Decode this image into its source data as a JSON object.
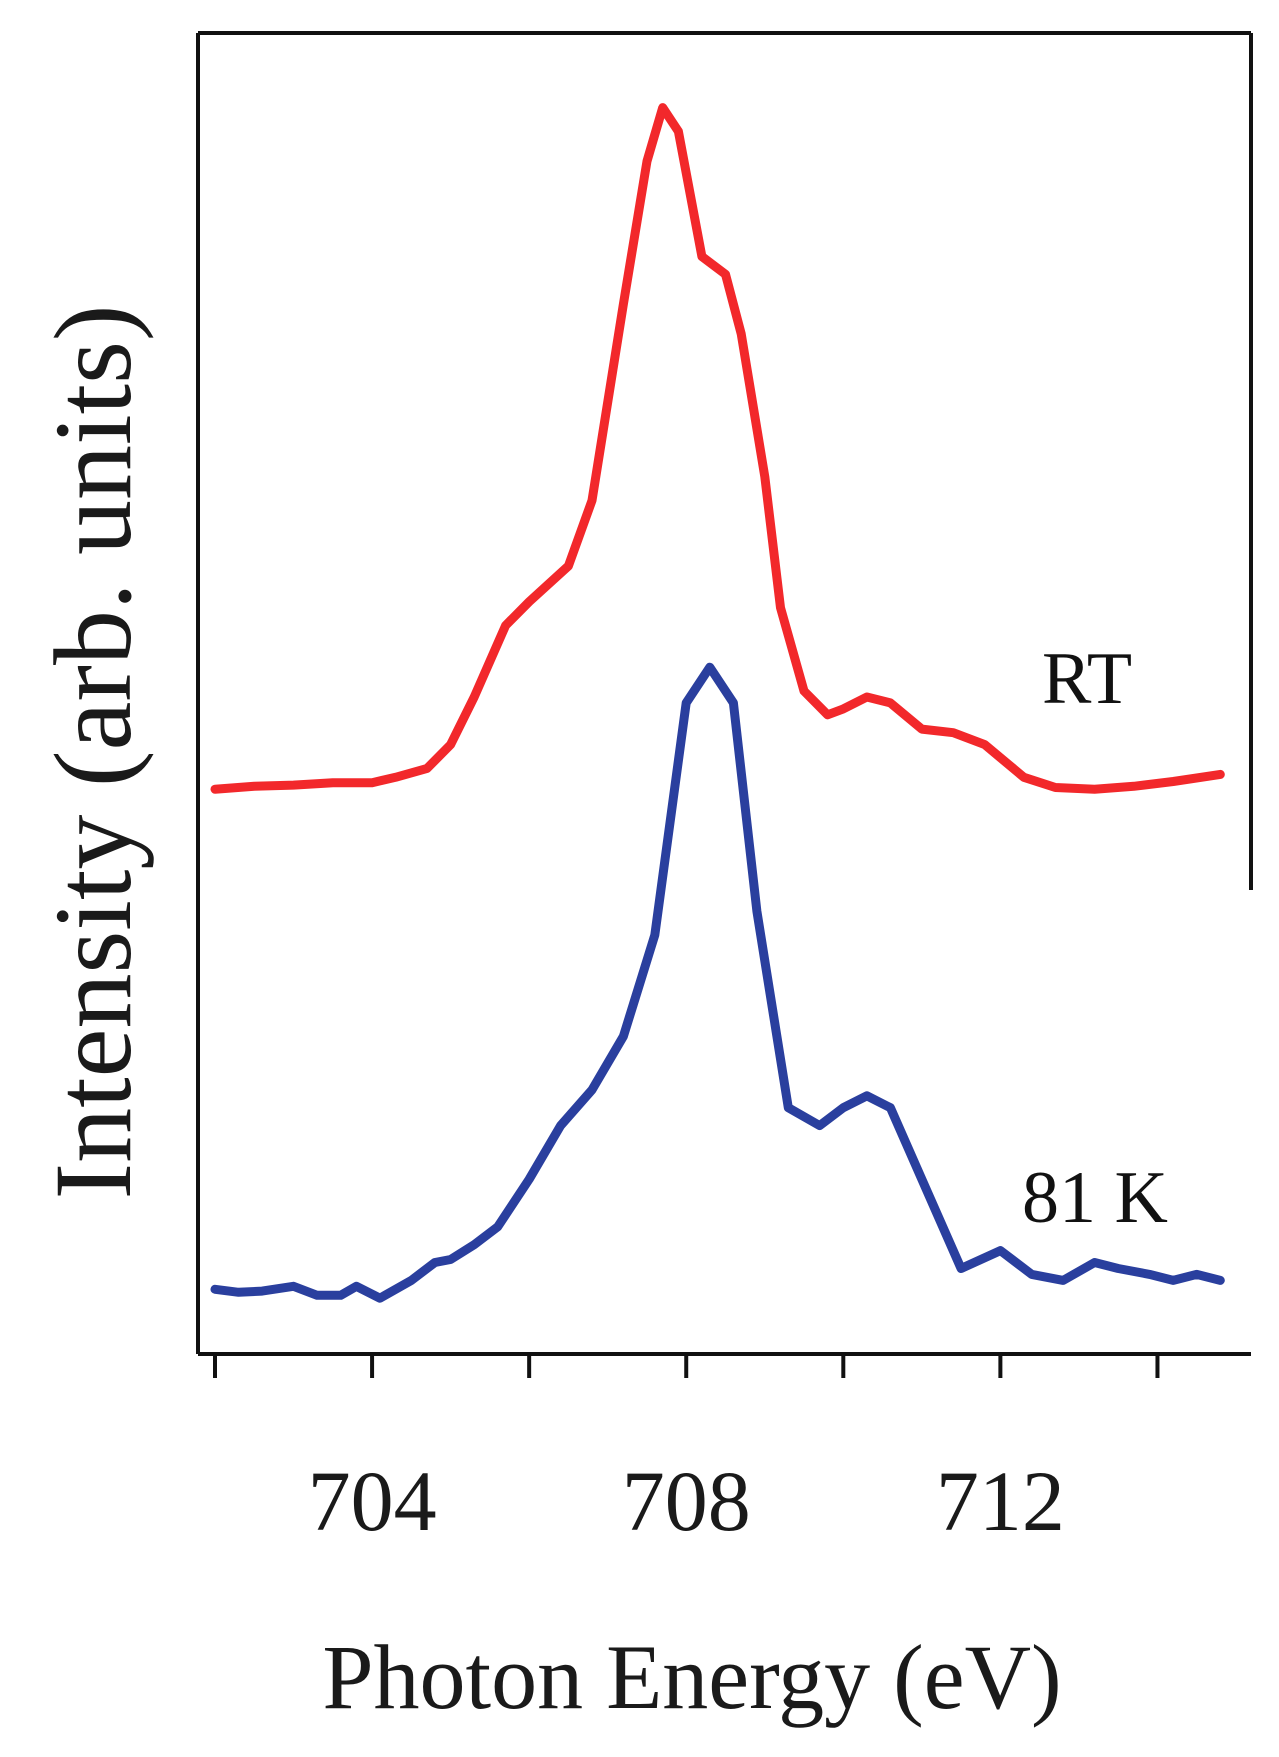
{
  "chart_data": {
    "type": "line",
    "title": "",
    "xlabel": "Photon Energy (eV)",
    "ylabel": "Intensity (arb. units)",
    "xlim": [
      702,
      715
    ],
    "ylim": [
      -0.05,
      2.08
    ],
    "x_ticks": [
      702,
      704,
      706,
      708,
      710,
      712,
      714
    ],
    "x_tick_labels": [
      {
        "value": 704,
        "label": "704"
      },
      {
        "value": 708,
        "label": "708"
      },
      {
        "value": 712,
        "label": "712"
      }
    ],
    "y_ticks": [],
    "grid": false,
    "series": [
      {
        "name": "RT",
        "color": "#f2282b",
        "points": [
          [
            702.0,
            0.855
          ],
          [
            702.5,
            0.86
          ],
          [
            703.0,
            0.862
          ],
          [
            703.5,
            0.866
          ],
          [
            704.0,
            0.866
          ],
          [
            704.3,
            0.875
          ],
          [
            704.7,
            0.89
          ],
          [
            705.0,
            0.93
          ],
          [
            705.3,
            1.01
          ],
          [
            705.7,
            1.13
          ],
          [
            706.0,
            1.17
          ],
          [
            706.5,
            1.23
          ],
          [
            706.8,
            1.34
          ],
          [
            707.2,
            1.67
          ],
          [
            707.5,
            1.91
          ],
          [
            707.7,
            2.0
          ],
          [
            707.9,
            1.96
          ],
          [
            708.2,
            1.75
          ],
          [
            708.5,
            1.72
          ],
          [
            708.7,
            1.62
          ],
          [
            709.0,
            1.38
          ],
          [
            709.2,
            1.16
          ],
          [
            709.5,
            1.02
          ],
          [
            709.8,
            0.98
          ],
          [
            710.0,
            0.99
          ],
          [
            710.3,
            1.01
          ],
          [
            710.6,
            1.0
          ],
          [
            711.0,
            0.956
          ],
          [
            711.4,
            0.95
          ],
          [
            711.8,
            0.93
          ],
          [
            712.3,
            0.875
          ],
          [
            712.7,
            0.858
          ],
          [
            713.2,
            0.855
          ],
          [
            713.7,
            0.86
          ],
          [
            714.2,
            0.868
          ],
          [
            714.8,
            0.88
          ]
        ]
      },
      {
        "name": "81 K",
        "color": "#2a3f9e",
        "points": [
          [
            702.0,
            0.015
          ],
          [
            702.3,
            0.01
          ],
          [
            702.6,
            0.012
          ],
          [
            703.0,
            0.02
          ],
          [
            703.3,
            0.005
          ],
          [
            703.6,
            0.005
          ],
          [
            703.8,
            0.02
          ],
          [
            704.1,
            0.0
          ],
          [
            704.5,
            0.03
          ],
          [
            704.8,
            0.06
          ],
          [
            705.0,
            0.065
          ],
          [
            705.3,
            0.09
          ],
          [
            705.6,
            0.12
          ],
          [
            706.0,
            0.2
          ],
          [
            706.4,
            0.29
          ],
          [
            706.8,
            0.35
          ],
          [
            707.2,
            0.44
          ],
          [
            707.6,
            0.61
          ],
          [
            708.0,
            1.0
          ],
          [
            708.3,
            1.06
          ],
          [
            708.6,
            1.0
          ],
          [
            708.9,
            0.65
          ],
          [
            709.3,
            0.32
          ],
          [
            709.7,
            0.29
          ],
          [
            710.0,
            0.32
          ],
          [
            710.3,
            0.34
          ],
          [
            710.6,
            0.32
          ],
          [
            711.0,
            0.2
          ],
          [
            711.5,
            0.05
          ],
          [
            712.0,
            0.08
          ],
          [
            712.4,
            0.04
          ],
          [
            712.8,
            0.03
          ],
          [
            713.2,
            0.06
          ],
          [
            713.5,
            0.05
          ],
          [
            713.9,
            0.04
          ],
          [
            714.2,
            0.03
          ],
          [
            714.5,
            0.04
          ],
          [
            714.8,
            0.03
          ]
        ]
      }
    ],
    "annotations": [
      {
        "text": "RT",
        "series": "RT"
      },
      {
        "text": "81 K",
        "series": "81 K"
      }
    ]
  }
}
